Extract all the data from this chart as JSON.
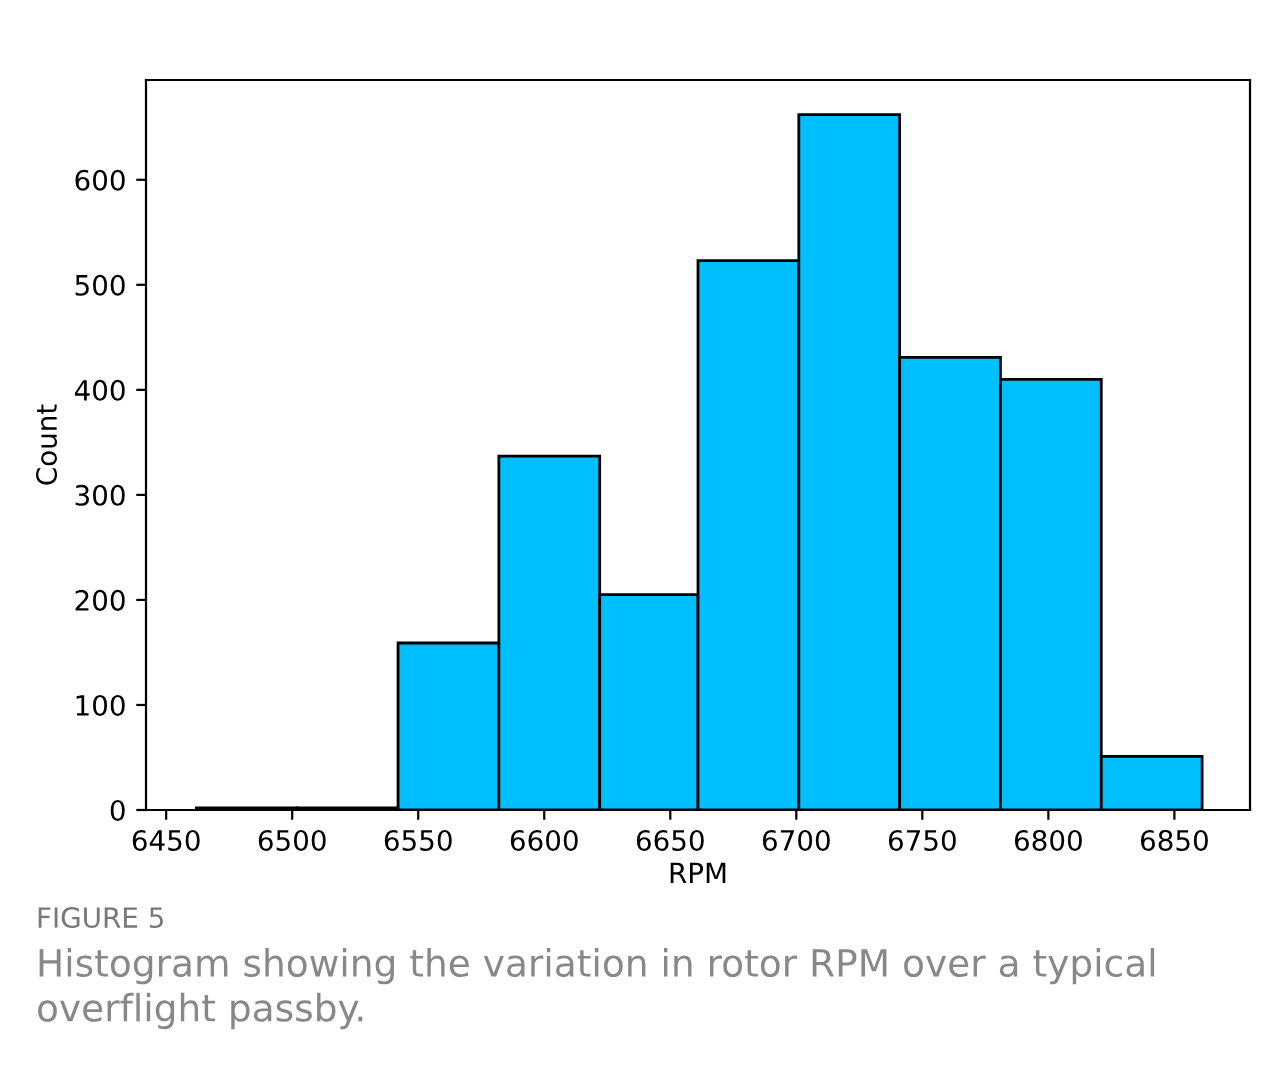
{
  "chart_data": {
    "type": "histogram",
    "xlabel": "RPM",
    "ylabel": "Count",
    "bins": [
      6462,
      6502,
      6542,
      6582,
      6622,
      6661,
      6701,
      6741,
      6781,
      6821,
      6861
    ],
    "values": [
      2,
      2,
      159,
      337,
      205,
      523,
      662,
      431,
      410,
      51
    ],
    "color": "#00bfff",
    "xlim": [
      6442,
      6880
    ],
    "ylim": [
      0,
      695
    ],
    "xticks": [
      6450,
      6500,
      6550,
      6600,
      6650,
      6700,
      6750,
      6800,
      6850
    ],
    "yticks": [
      0,
      100,
      200,
      300,
      400,
      500,
      600
    ],
    "grid": false,
    "annotations": [
      "FIGURE 5",
      "Histogram showing the variation in rotor RPM over a typical overflight passby."
    ]
  }
}
